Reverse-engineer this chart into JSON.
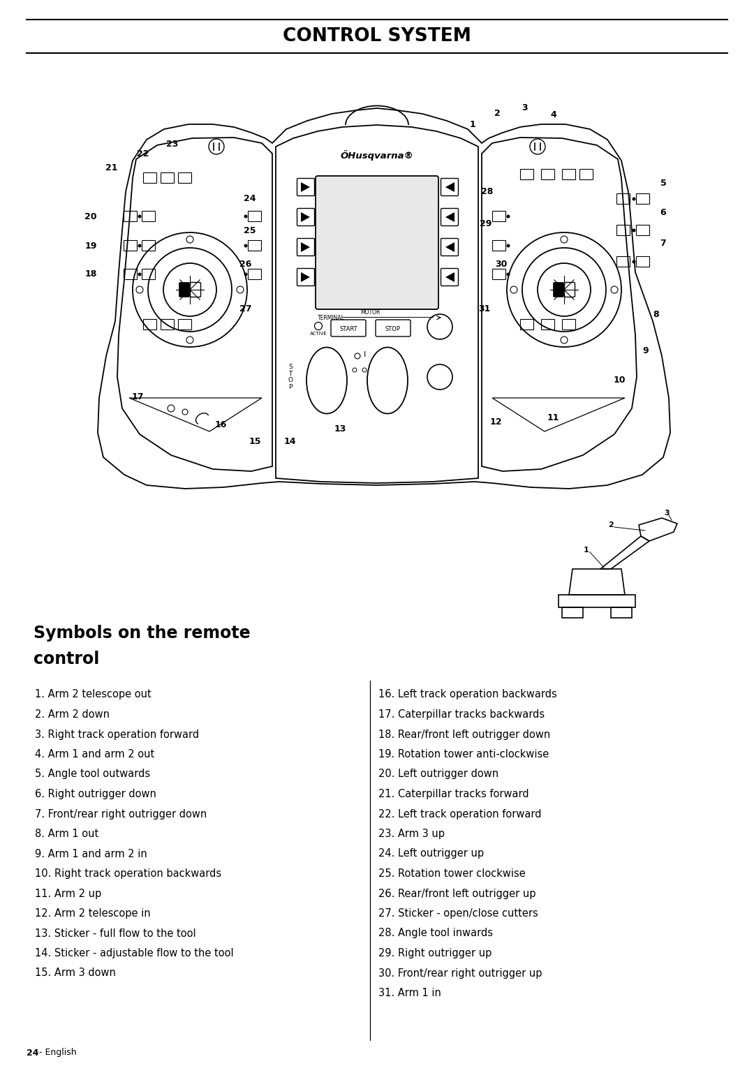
{
  "title": "CONTROL SYSTEM",
  "bg_color": "#ffffff",
  "title_fontsize": 19,
  "section_title_line1": "Symbols on the remote",
  "section_title_line2": "control",
  "section_title_fontsize": 17,
  "left_items": [
    "1. Arm 2 telescope out",
    "2. Arm 2 down",
    "3. Right track operation forward",
    "4. Arm 1 and arm 2 out",
    "5. Angle tool outwards",
    "6. Right outrigger down",
    "7. Front/rear right outrigger down",
    "8. Arm 1 out",
    "9. Arm 1 and arm 2 in",
    "10. Right track operation backwards",
    "11. Arm 2 up",
    "12. Arm 2 telescope in",
    "13. Sticker - full flow to the tool",
    "14. Sticker - adjustable flow to the tool",
    "15. Arm 3 down"
  ],
  "right_items": [
    "16. Left track operation backwards",
    "17. Caterpillar tracks backwards",
    "18. Rear/front left outrigger down",
    "19. Rotation tower anti-clockwise",
    "20. Left outrigger down",
    "21. Caterpillar tracks forward",
    "22. Left track operation forward",
    "23. Arm 3 up",
    "24. Left outrigger up",
    "25. Rotation tower clockwise",
    "26. Rear/front left outrigger up",
    "27. Sticker - open/close cutters",
    "28. Angle tool inwards",
    "29. Right outrigger up",
    "30. Front/rear right outrigger up",
    "31. Arm 1 in"
  ],
  "footer_text": "24",
  "footer_suffix": " - English",
  "item_fontsize": 10.5,
  "footer_fontsize": 9
}
